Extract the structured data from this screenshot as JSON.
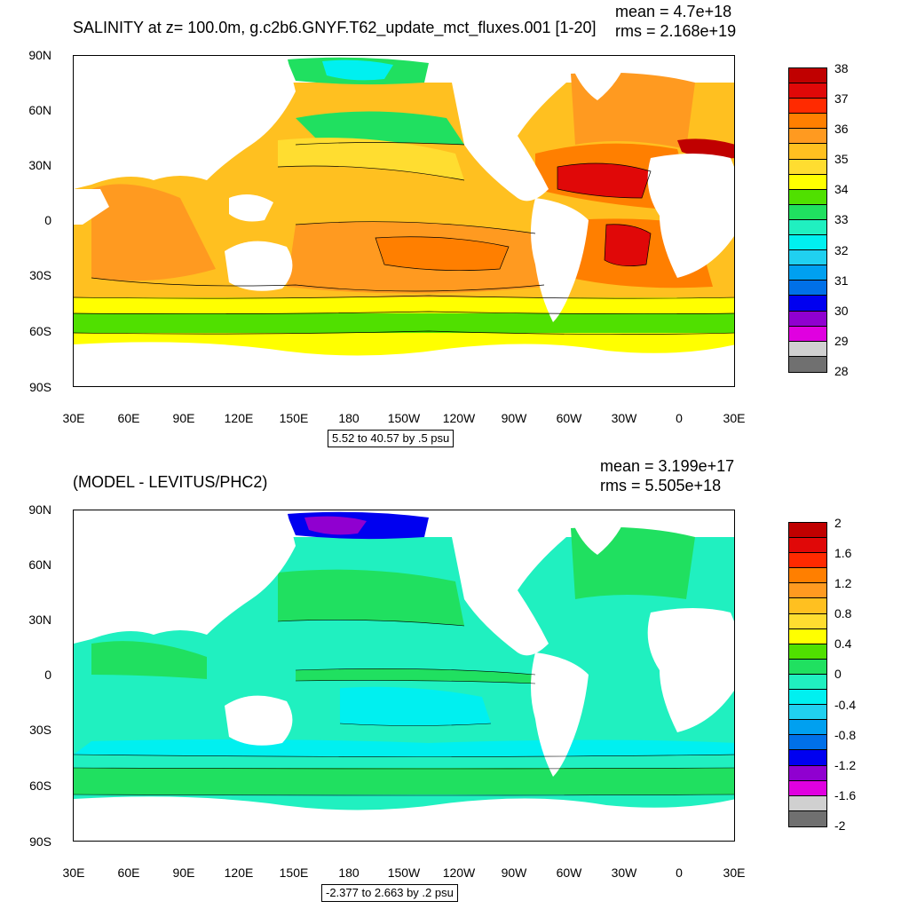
{
  "panels": [
    {
      "title": "SALINITY at z= 100.0m, g.c2b6.GNYF.T62_update_mct_fluxes.001 [1-20]",
      "mean_text": "mean = 4.7e+18",
      "rms_text": "rms = 2.168e+19",
      "range_text": "5.52 to 40.57 by .5 psu",
      "lat_labels": [
        "90N",
        "60N",
        "30N",
        "0",
        "30S",
        "60S",
        "90S"
      ],
      "lon_labels": [
        "30E",
        "60E",
        "90E",
        "120E",
        "150E",
        "180",
        "150W",
        "120W",
        "90W",
        "60W",
        "30W",
        "0",
        "30E"
      ],
      "colorbar": {
        "labels": [
          "38",
          "37",
          "36",
          "35",
          "34",
          "33",
          "32",
          "31",
          "30",
          "29",
          "28"
        ],
        "colors": [
          "#c00000",
          "#e00808",
          "#ff2a00",
          "#ff7f00",
          "#ff9a20",
          "#ffc020",
          "#ffdd30",
          "#ffff00",
          "#50e000",
          "#20e060",
          "#20f0c0",
          "#00f0f0",
          "#20d0f0",
          "#00a0f0",
          "#0070e8",
          "#0000f0",
          "#9000d0",
          "#e000e0",
          "#d0d0d0",
          "#707070"
        ]
      }
    },
    {
      "title": "(MODEL - LEVITUS/PHC2)",
      "mean_text": "mean = 3.199e+17",
      "rms_text": "rms = 5.505e+18",
      "range_text": "-2.377 to 2.663 by .2 psu",
      "lat_labels": [
        "90N",
        "60N",
        "30N",
        "0",
        "30S",
        "60S",
        "90S"
      ],
      "lon_labels": [
        "30E",
        "60E",
        "90E",
        "120E",
        "150E",
        "180",
        "150W",
        "120W",
        "90W",
        "60W",
        "30W",
        "0",
        "30E"
      ],
      "colorbar": {
        "labels": [
          "2",
          "1.6",
          "1.2",
          "0.8",
          "0.4",
          "0",
          "-0.4",
          "-0.8",
          "-1.2",
          "-1.6",
          "-2"
        ],
        "colors": [
          "#c00000",
          "#e00808",
          "#ff2a00",
          "#ff7f00",
          "#ff9a20",
          "#ffc020",
          "#ffdd30",
          "#ffff00",
          "#50e000",
          "#20e060",
          "#20f0c0",
          "#00f0f0",
          "#20d0f0",
          "#00a0f0",
          "#0070e8",
          "#0000f0",
          "#9000d0",
          "#e000e0",
          "#d0d0d0",
          "#707070"
        ]
      }
    }
  ]
}
